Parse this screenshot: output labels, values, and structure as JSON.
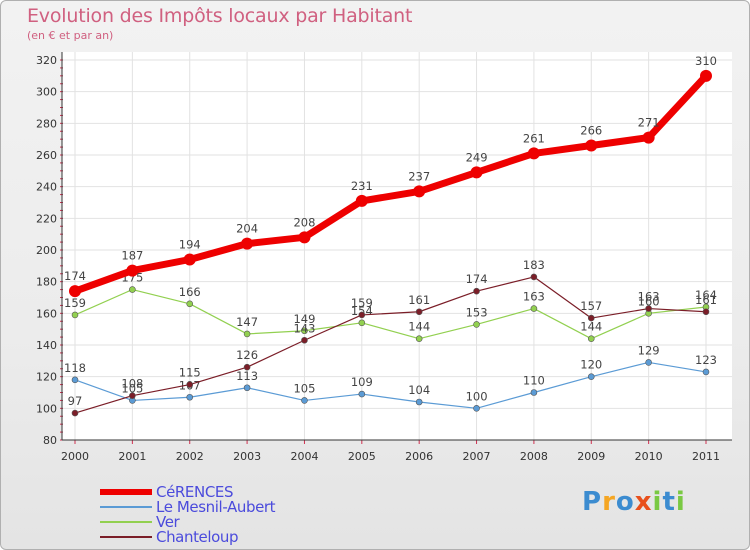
{
  "title": "Evolution des Impôts locaux par Habitant",
  "subtitle": "(en € et par an)",
  "logo": {
    "text": "Proxiti",
    "letters": [
      "P",
      "r",
      "o",
      "x",
      "i",
      "t",
      "i"
    ],
    "colors": [
      "#3c8cd0",
      "#f5a623",
      "#3c8cd0",
      "#e8501c",
      "#7ac943",
      "#3c8cd0",
      "#7ac943"
    ]
  },
  "chart_data": {
    "type": "line",
    "title": "Evolution des Impôts locaux par Habitant",
    "subtitle": "(en € et par an)",
    "x": [
      "2000",
      "2001",
      "2002",
      "2003",
      "2004",
      "2005",
      "2006",
      "2007",
      "2008",
      "2009",
      "2010",
      "2011"
    ],
    "ylim": [
      80,
      320
    ],
    "yticks": [
      80,
      100,
      120,
      140,
      160,
      180,
      200,
      220,
      240,
      260,
      280,
      300,
      320
    ],
    "grid": true,
    "legend_position": "bottom-left",
    "series": [
      {
        "name": "CéRENCES",
        "color": "#ee0000",
        "values": [
          174,
          187,
          194,
          204,
          208,
          231,
          237,
          249,
          261,
          266,
          271,
          310
        ],
        "labels": [
          "174",
          "187",
          "194",
          "204",
          "208",
          "231",
          "237",
          "249",
          "261",
          "266",
          "271",
          "310"
        ],
        "bold": true
      },
      {
        "name": "Le Mesnil-Aubert",
        "color": "#5b9bd5",
        "values": [
          118,
          105,
          107,
          113,
          105,
          109,
          104,
          100,
          110,
          120,
          129,
          123
        ],
        "labels": [
          "118",
          "105",
          "107",
          "113",
          "105",
          "109",
          "104",
          "100",
          "110",
          "120",
          "129",
          "123"
        ]
      },
      {
        "name": "Ver",
        "color": "#92d050",
        "values": [
          159,
          175,
          166,
          147,
          149,
          154,
          144,
          153,
          163,
          144,
          160,
          164
        ],
        "labels": [
          "159",
          "175",
          "166",
          "147",
          "149",
          "154",
          "144",
          "153",
          "163",
          "144",
          "160",
          "164"
        ]
      },
      {
        "name": "Chanteloup",
        "color": "#7b1e28",
        "values": [
          97,
          108,
          115,
          126,
          143,
          159,
          161,
          174,
          183,
          157,
          163,
          161
        ],
        "labels": [
          "97",
          "108",
          "115",
          "126",
          "143",
          "159",
          "161",
          "174",
          "183",
          "157",
          "163",
          "161"
        ]
      }
    ]
  }
}
